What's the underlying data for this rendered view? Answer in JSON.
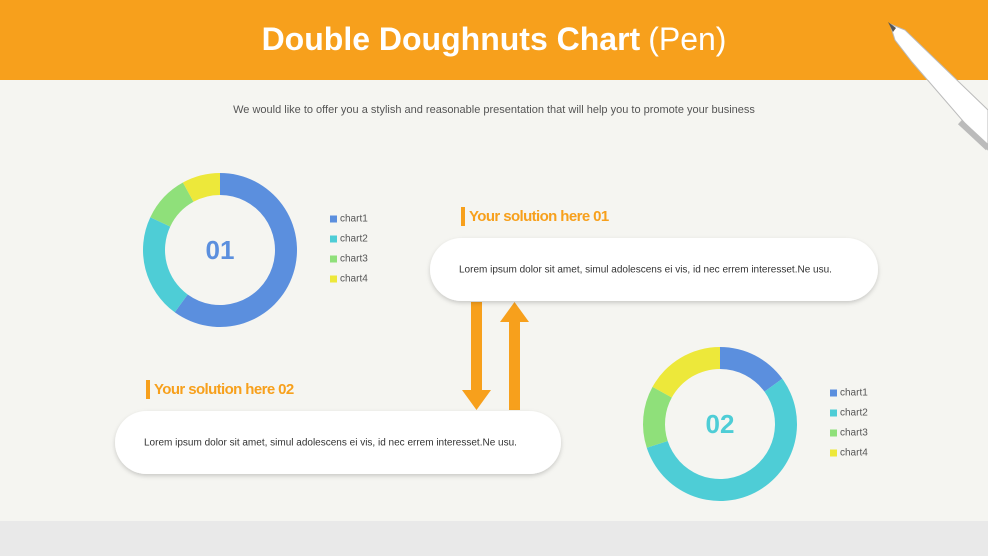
{
  "header": {
    "title": "Double Doughnuts Chart",
    "title_note": "(Pen)"
  },
  "subtitle": "We would like to offer you a stylish and reasonable presentation that will help you to promote your business",
  "solutions": [
    {
      "heading": "Your solution here 01",
      "text": "Lorem ipsum dolor sit amet, simul adolescens ei vis, id nec errem interesset.Ne usu."
    },
    {
      "heading": "Your solution here 02",
      "text": "Lorem ipsum dolor sit amet, simul adolescens ei vis, id nec errem interesset.Ne usu."
    }
  ],
  "chart_data": [
    {
      "type": "doughnut",
      "label": "01",
      "label_color": "#5b8fde",
      "categories": [
        "chart1",
        "chart2",
        "chart3",
        "chart4"
      ],
      "values": [
        60,
        22,
        10,
        8
      ],
      "colors": [
        "#5b8fde",
        "#4ecdd6",
        "#8fe07a",
        "#ede83a"
      ]
    },
    {
      "type": "doughnut",
      "label": "02",
      "label_color": "#4ecdd6",
      "categories": [
        "chart1",
        "chart2",
        "chart3",
        "chart4"
      ],
      "values": [
        15,
        55,
        13,
        17
      ],
      "colors": [
        "#5b8fde",
        "#4ecdd6",
        "#8fe07a",
        "#ede83a"
      ]
    }
  ]
}
